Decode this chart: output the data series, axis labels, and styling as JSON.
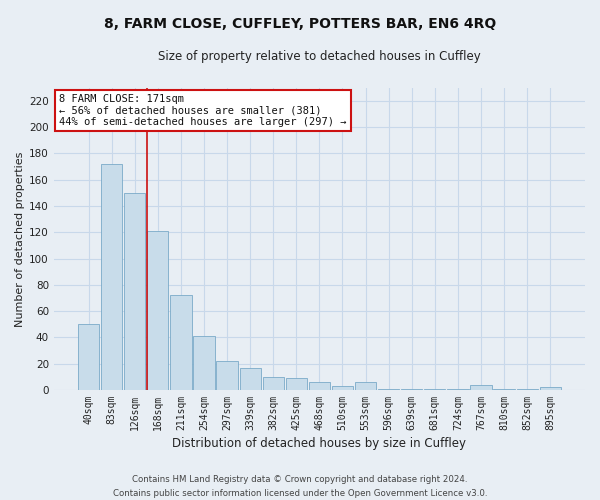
{
  "title": "8, FARM CLOSE, CUFFLEY, POTTERS BAR, EN6 4RQ",
  "subtitle": "Size of property relative to detached houses in Cuffley",
  "xlabel": "Distribution of detached houses by size in Cuffley",
  "ylabel": "Number of detached properties",
  "bar_labels": [
    "40sqm",
    "83sqm",
    "126sqm",
    "168sqm",
    "211sqm",
    "254sqm",
    "297sqm",
    "339sqm",
    "382sqm",
    "425sqm",
    "468sqm",
    "510sqm",
    "553sqm",
    "596sqm",
    "639sqm",
    "681sqm",
    "724sqm",
    "767sqm",
    "810sqm",
    "852sqm",
    "895sqm"
  ],
  "bar_values": [
    50,
    172,
    150,
    121,
    72,
    41,
    22,
    17,
    10,
    9,
    6,
    3,
    6,
    1,
    1,
    1,
    1,
    4,
    1,
    1,
    2
  ],
  "bar_color": "#c8dcea",
  "bar_edge_color": "#7aaac8",
  "vline_index": 3,
  "vline_color": "#cc1111",
  "annotation_text": "8 FARM CLOSE: 171sqm\n← 56% of detached houses are smaller (381)\n44% of semi-detached houses are larger (297) →",
  "annotation_box_facecolor": "#ffffff",
  "annotation_box_edgecolor": "#cc1111",
  "ylim": [
    0,
    230
  ],
  "yticks": [
    0,
    20,
    40,
    60,
    80,
    100,
    120,
    140,
    160,
    180,
    200,
    220
  ],
  "grid_color": "#c8d8ea",
  "footer_line1": "Contains HM Land Registry data © Crown copyright and database right 2024.",
  "footer_line2": "Contains public sector information licensed under the Open Government Licence v3.0.",
  "bg_color": "#e8eef4",
  "plot_bg_color": "#e8eef4",
  "title_fontsize": 10,
  "subtitle_fontsize": 8.5,
  "ylabel_fontsize": 8,
  "xlabel_fontsize": 8.5,
  "tick_fontsize": 7,
  "annot_fontsize": 7.5,
  "footer_fontsize": 6.2
}
